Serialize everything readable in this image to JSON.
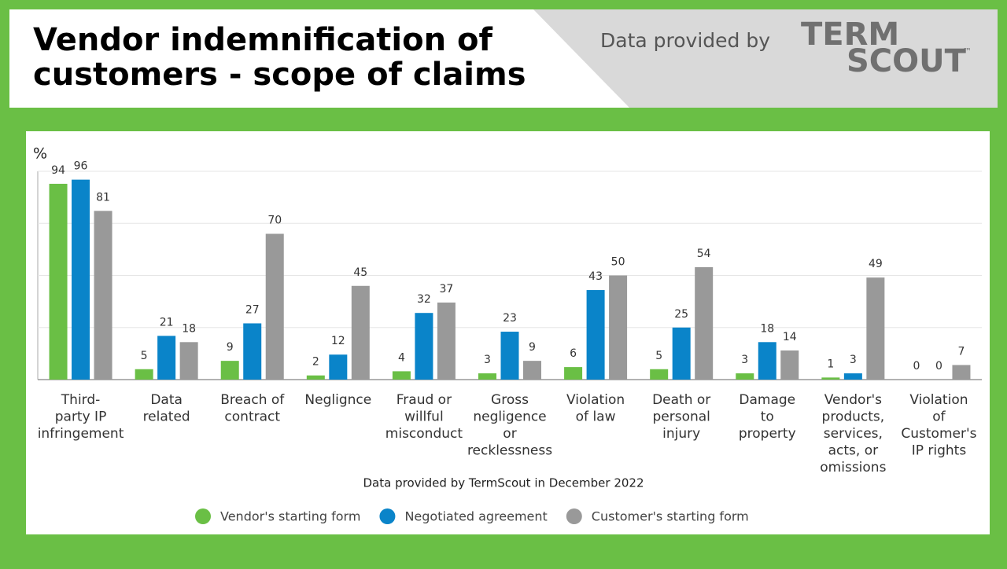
{
  "header": {
    "title_line1": "Vendor indemnification of",
    "title_line2": "customers - scope of claims",
    "provided_by": "Data provided by",
    "logo_line1": "TERM",
    "logo_line2": "SCOUT",
    "logo_mark": "™"
  },
  "chart_data": {
    "type": "bar",
    "y_label": "%",
    "note": "Data provided by TermScout in December 2022",
    "categories": [
      "Third-\nparty IP\ninfringement",
      "Data\nrelated",
      "Breach of\ncontract",
      "Neglignce",
      "Fraud or\nwillful\nmisconduct",
      "Gross\nnegligence\nor\nrecklessness",
      "Violation\nof law",
      "Death or\npersonal\ninjury",
      "Damage\nto\nproperty",
      "Vendor's\nproducts,\nservices,\nacts, or\nomissions",
      "Violation\nof\nCustomer's\nIP rights"
    ],
    "series": [
      {
        "name": "Vendor's starting form",
        "color": "#6abf45",
        "values": [
          94,
          5,
          9,
          2,
          4,
          3,
          6,
          5,
          3,
          1,
          0
        ]
      },
      {
        "name": "Negotiated agreement",
        "color": "#0a84c9",
        "values": [
          96,
          21,
          27,
          12,
          32,
          23,
          43,
          25,
          18,
          3,
          0
        ]
      },
      {
        "name": "Customer's starting form",
        "color": "#999999",
        "values": [
          81,
          18,
          70,
          45,
          37,
          9,
          50,
          54,
          14,
          49,
          7
        ]
      }
    ],
    "ylim": [
      0,
      100
    ],
    "yticks": [
      0,
      25,
      50,
      75,
      100
    ],
    "grid": true,
    "legend": "bottom"
  }
}
